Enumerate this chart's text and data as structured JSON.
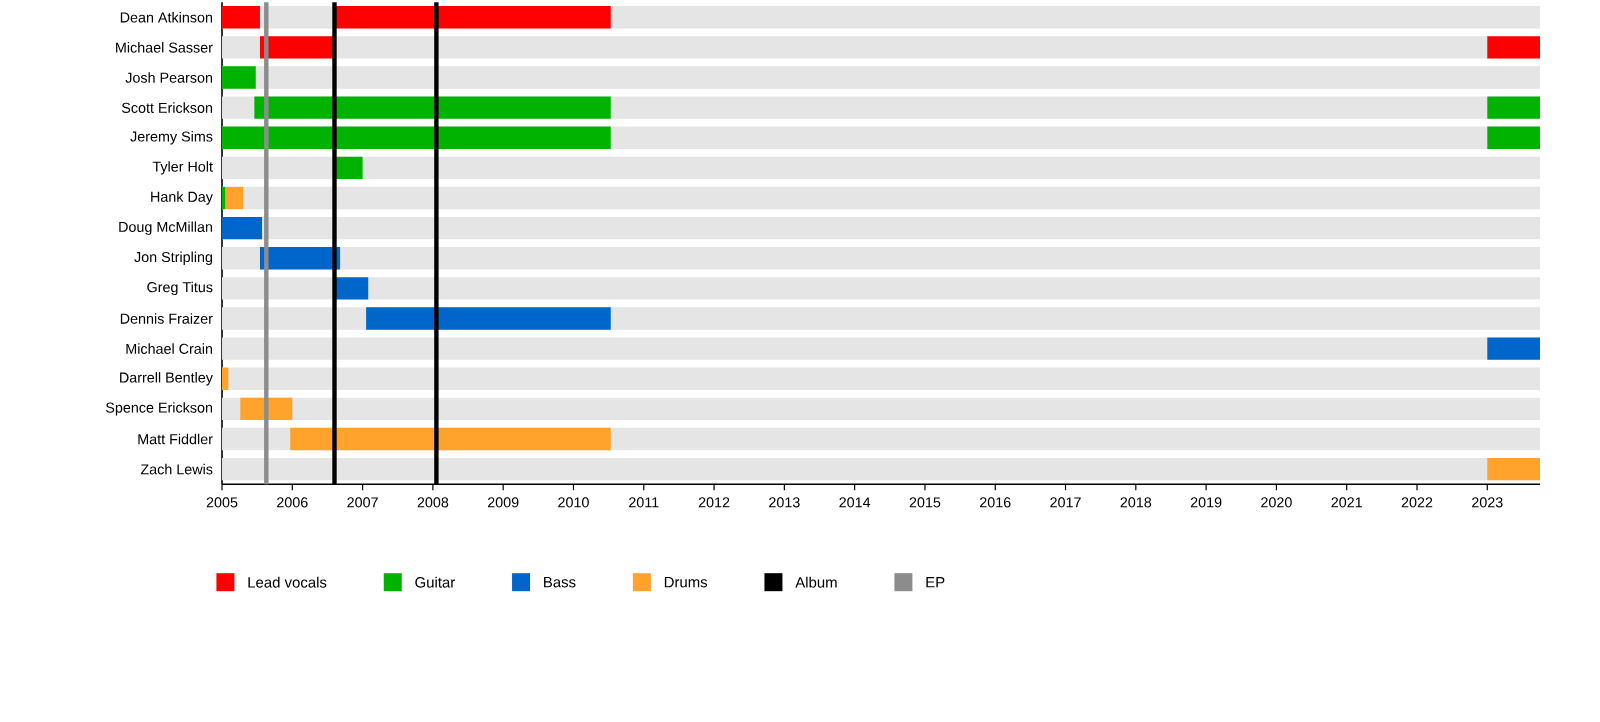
{
  "chart_data": {
    "type": "bar",
    "orientation": "horizontal",
    "categories": [
      "Dean Atkinson",
      "Michael Sasser",
      "Josh Pearson",
      "Scott Erickson",
      "Jeremy Sims",
      "Tyler Holt",
      "Hank Day",
      "Doug McMillan",
      "Jon Stripling",
      "Greg Titus",
      "Dennis Fraizer",
      "Michael Crain",
      "Darrell Bentley",
      "Spence Erickson",
      "Matt Fiddler",
      "Zach Lewis"
    ],
    "series": [
      {
        "name": "Lead vocals",
        "color": "#ff0000",
        "base": [
          2005,
          2005.54,
          null,
          null,
          null,
          null,
          null,
          null,
          null,
          null,
          null,
          null,
          null,
          null,
          null,
          null
        ],
        "values": [
          0.54,
          1.06,
          null,
          null,
          null,
          null,
          null,
          null,
          null,
          null,
          null,
          null,
          null,
          null,
          null,
          null
        ]
      },
      {
        "color": "#ff0000",
        "base": [
          2006.6,
          2023,
          null,
          null,
          null,
          null,
          null,
          null,
          null,
          null,
          null,
          null,
          null,
          null,
          null,
          null
        ],
        "values": [
          3.93,
          0.75,
          null,
          null,
          null,
          null,
          null,
          null,
          null,
          null,
          null,
          null,
          null,
          null,
          null,
          null
        ]
      },
      {
        "name": "Guitar",
        "color": "#00b300",
        "base": [
          null,
          null,
          2005,
          2005.46,
          2005,
          2006.62,
          2005,
          null,
          null,
          null,
          null,
          null,
          null,
          null,
          null,
          null
        ],
        "values": [
          null,
          null,
          0.48,
          5.07,
          5.53,
          0.38,
          0.05,
          null,
          null,
          null,
          null,
          null,
          null,
          null,
          null,
          null
        ]
      },
      {
        "color": "#00b300",
        "base": [
          null,
          null,
          null,
          2023,
          2023,
          null,
          null,
          null,
          null,
          null,
          null,
          null,
          null,
          null,
          null,
          null
        ],
        "values": [
          null,
          null,
          null,
          0.75,
          0.75,
          null,
          null,
          null,
          null,
          null,
          null,
          null,
          null,
          null,
          null,
          null
        ]
      },
      {
        "name": "Bass",
        "color": "#0066cc",
        "base": [
          null,
          null,
          null,
          null,
          null,
          null,
          null,
          2005,
          2005.54,
          2006.62,
          2007.05,
          2023,
          null,
          null,
          null,
          null
        ],
        "values": [
          null,
          null,
          null,
          null,
          null,
          null,
          null,
          0.57,
          1.14,
          0.46,
          3.48,
          0.75,
          null,
          null,
          null,
          null
        ]
      },
      {
        "name": "Drums",
        "color": "#ffa32c",
        "base": [
          null,
          null,
          null,
          null,
          null,
          null,
          2005.05,
          null,
          null,
          null,
          null,
          null,
          2005,
          2005.26,
          2005.97,
          2023
        ],
        "values": [
          null,
          null,
          null,
          null,
          null,
          null,
          0.25,
          null,
          null,
          null,
          null,
          null,
          0.09,
          0.74,
          4.56,
          0.75
        ]
      }
    ],
    "xlim": [
      2005,
      2023.75
    ],
    "xticks": [
      2005,
      2006,
      2007,
      2008,
      2009,
      2010,
      2011,
      2012,
      2013,
      2014,
      2015,
      2016,
      2017,
      2018,
      2019,
      2020,
      2021,
      2022,
      2023
    ],
    "ref_lines": [
      {
        "axis": "x",
        "value": 2006.6,
        "label": "Album",
        "color": "#000000"
      },
      {
        "axis": "x",
        "value": 2008.05,
        "color": "#000000"
      },
      {
        "axis": "x",
        "value": 2005.63,
        "label": "EP",
        "color": "#8c8c8c"
      }
    ],
    "legend": "bottom"
  }
}
